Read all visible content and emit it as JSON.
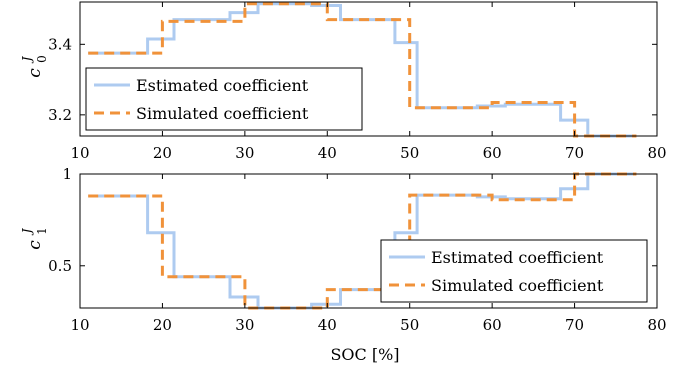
{
  "colors": {
    "estimated": "#aecbf0",
    "simulated": "#f0923a"
  },
  "xlabel": "SOC [%]",
  "chart_data": [
    {
      "type": "line",
      "ylabel_main": "c",
      "ylabel_sup": "J",
      "ylabel_sub": "0",
      "xlim": [
        10,
        80
      ],
      "ylim": [
        3.14,
        3.52
      ],
      "xticks": [
        "10",
        "20",
        "30",
        "40",
        "50",
        "60",
        "70",
        "80"
      ],
      "xtick_values": [
        10,
        20,
        30,
        40,
        50,
        60,
        70,
        80
      ],
      "yticks": [
        "3.2",
        "3.4"
      ],
      "ytick_values": [
        3.2,
        3.4
      ],
      "grid": false,
      "legend": {
        "position": "bottom-left",
        "entries": [
          "Estimated coefficient",
          "Simulated coefficient"
        ]
      },
      "series": [
        {
          "name": "Estimated coefficient",
          "style": "solid",
          "points": [
            [
              11,
              3.375
            ],
            [
              18.2,
              3.375
            ],
            [
              18.2,
              3.415
            ],
            [
              21.4,
              3.415
            ],
            [
              21.4,
              3.47
            ],
            [
              28.2,
              3.47
            ],
            [
              28.2,
              3.49
            ],
            [
              31.6,
              3.49
            ],
            [
              31.6,
              3.515
            ],
            [
              38.1,
              3.515
            ],
            [
              38.1,
              3.51
            ],
            [
              41.6,
              3.51
            ],
            [
              41.6,
              3.47
            ],
            [
              48.2,
              3.47
            ],
            [
              48.2,
              3.405
            ],
            [
              50.9,
              3.405
            ],
            [
              50.9,
              3.22
            ],
            [
              58.2,
              3.22
            ],
            [
              58.2,
              3.225
            ],
            [
              61.6,
              3.225
            ],
            [
              61.6,
              3.23
            ],
            [
              68.3,
              3.23
            ],
            [
              68.3,
              3.185
            ],
            [
              71.6,
              3.185
            ],
            [
              71.6,
              3.14
            ],
            [
              77.5,
              3.14
            ]
          ]
        },
        {
          "name": "Simulated coefficient",
          "style": "dashed",
          "points": [
            [
              11,
              3.375
            ],
            [
              20,
              3.375
            ],
            [
              20,
              3.465
            ],
            [
              30,
              3.465
            ],
            [
              30,
              3.515
            ],
            [
              40,
              3.515
            ],
            [
              40,
              3.47
            ],
            [
              50,
              3.47
            ],
            [
              50,
              3.22
            ],
            [
              60,
              3.22
            ],
            [
              60,
              3.235
            ],
            [
              70,
              3.235
            ],
            [
              70,
              3.14
            ],
            [
              77.5,
              3.14
            ]
          ]
        }
      ]
    },
    {
      "type": "line",
      "ylabel_main": "c",
      "ylabel_sup": "J",
      "ylabel_sub": "1",
      "xlim": [
        10,
        80
      ],
      "ylim": [
        0.27,
        1.0
      ],
      "xticks": [
        "10",
        "20",
        "30",
        "40",
        "50",
        "60",
        "70",
        "80"
      ],
      "xtick_values": [
        10,
        20,
        30,
        40,
        50,
        60,
        70,
        80
      ],
      "yticks": [
        "0.5",
        "1"
      ],
      "ytick_values": [
        0.5,
        1.0
      ],
      "grid": false,
      "legend": {
        "position": "bottom-right",
        "entries": [
          "Estimated coefficient",
          "Simulated coefficient"
        ]
      },
      "series": [
        {
          "name": "Estimated coefficient",
          "style": "solid",
          "points": [
            [
              11,
              0.88
            ],
            [
              18.2,
              0.88
            ],
            [
              18.2,
              0.68
            ],
            [
              21.4,
              0.68
            ],
            [
              21.4,
              0.44
            ],
            [
              28.2,
              0.44
            ],
            [
              28.2,
              0.33
            ],
            [
              31.6,
              0.33
            ],
            [
              31.6,
              0.27
            ],
            [
              38.1,
              0.27
            ],
            [
              38.1,
              0.29
            ],
            [
              41.6,
              0.29
            ],
            [
              41.6,
              0.37
            ],
            [
              48.2,
              0.37
            ],
            [
              48.2,
              0.68
            ],
            [
              50.9,
              0.68
            ],
            [
              50.9,
              0.885
            ],
            [
              58.2,
              0.885
            ],
            [
              58.2,
              0.875
            ],
            [
              61.6,
              0.875
            ],
            [
              61.6,
              0.865
            ],
            [
              68.3,
              0.865
            ],
            [
              68.3,
              0.92
            ],
            [
              71.6,
              0.92
            ],
            [
              71.6,
              1.0
            ],
            [
              77.5,
              1.0
            ]
          ]
        },
        {
          "name": "Simulated coefficient",
          "style": "dashed",
          "points": [
            [
              11,
              0.88
            ],
            [
              20,
              0.88
            ],
            [
              20,
              0.44
            ],
            [
              30,
              0.44
            ],
            [
              30,
              0.27
            ],
            [
              40,
              0.27
            ],
            [
              40,
              0.37
            ],
            [
              50,
              0.37
            ],
            [
              50,
              0.885
            ],
            [
              60,
              0.885
            ],
            [
              60,
              0.86
            ],
            [
              70,
              0.86
            ],
            [
              70,
              1.0
            ],
            [
              77.5,
              1.0
            ]
          ]
        }
      ]
    }
  ]
}
